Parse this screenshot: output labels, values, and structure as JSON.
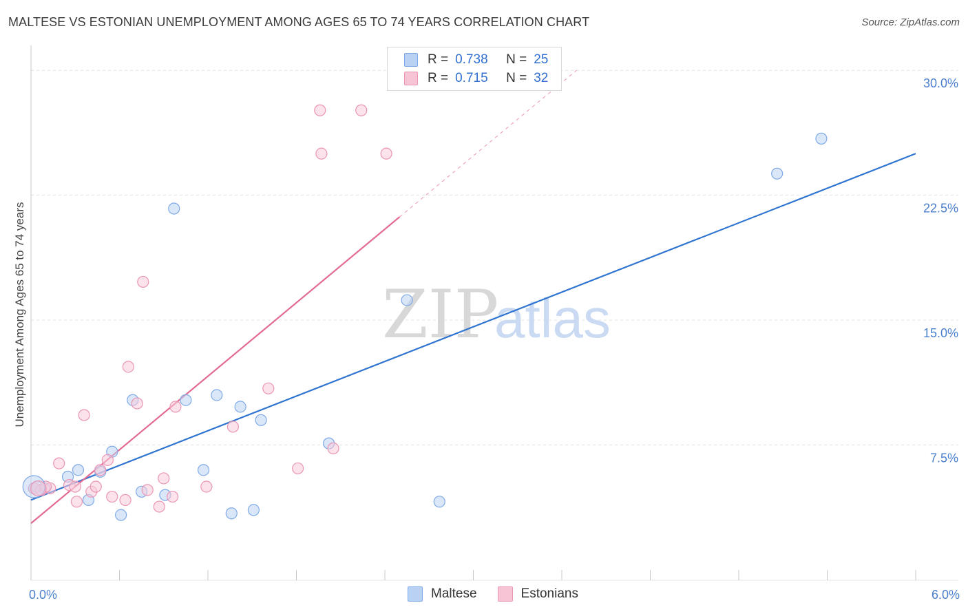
{
  "title": "MALTESE VS ESTONIAN UNEMPLOYMENT AMONG AGES 65 TO 74 YEARS CORRELATION CHART",
  "source": "Source: ZipAtlas.com",
  "watermark": {
    "zip": "ZIP",
    "atlas": "atlas"
  },
  "legend": {
    "rows": [
      {
        "r_label": "R =",
        "r_value": "0.738",
        "n_label": "N =",
        "n_value": "25",
        "color": "#7fa9e6",
        "fill": "#b9d1f2"
      },
      {
        "r_label": "R =",
        "r_value": "0.715",
        "n_label": "N =",
        "n_value": "32",
        "color": "#ea95b4",
        "fill": "#f7c4d6"
      }
    ]
  },
  "bottom_legend": {
    "maltese": "Maltese",
    "estonians": "Estonians"
  },
  "colors": {
    "maltese_stroke": "#7fa9e6",
    "maltese_fill": "#bcd3f3",
    "maltese_line": "#2f74d0",
    "estonians_stroke": "#ea95b4",
    "estonians_fill": "#f8cbdb",
    "estonians_line": "#e36a93",
    "tick_text": "#4a7fcf",
    "grid": "#e2e2e2"
  },
  "chart_data": {
    "type": "scatter",
    "xlabel": "",
    "ylabel": "Unemployment Among Ages 65 to 74 years",
    "xlim": [
      0,
      6
    ],
    "ylim": [
      0,
      31
    ],
    "x_tick_labels": [
      {
        "value": 0,
        "label": "0.0%"
      },
      {
        "value": 6,
        "label": "6.0%"
      }
    ],
    "y_tick_labels": [
      {
        "value": 7.5,
        "label": "7.5%"
      },
      {
        "value": 15,
        "label": "15.0%"
      },
      {
        "value": 22.5,
        "label": "22.5%"
      },
      {
        "value": 30,
        "label": "30.0%"
      }
    ],
    "series": [
      {
        "name": "Maltese",
        "points": [
          [
            0.02,
            4.9
          ],
          [
            0.09,
            4.9
          ],
          [
            0.25,
            5.6
          ],
          [
            0.32,
            6.0
          ],
          [
            0.39,
            4.2
          ],
          [
            0.47,
            5.9
          ],
          [
            0.55,
            7.1
          ],
          [
            0.61,
            3.3
          ],
          [
            0.69,
            10.2
          ],
          [
            0.75,
            4.7
          ],
          [
            0.91,
            4.5
          ],
          [
            0.97,
            21.7
          ],
          [
            1.05,
            10.2
          ],
          [
            1.17,
            6.0
          ],
          [
            1.26,
            10.5
          ],
          [
            1.36,
            3.4
          ],
          [
            1.42,
            9.8
          ],
          [
            1.51,
            3.6
          ],
          [
            1.56,
            9.0
          ],
          [
            2.02,
            7.6
          ],
          [
            2.55,
            16.2
          ],
          [
            2.77,
            4.1
          ],
          [
            5.06,
            23.8
          ],
          [
            5.36,
            25.9
          ],
          [
            0.04,
            5.0
          ]
        ],
        "trend": {
          "x": [
            0,
            6
          ],
          "y": [
            4.2,
            25.0
          ]
        }
      },
      {
        "name": "Estonians",
        "points": [
          [
            0.02,
            4.9
          ],
          [
            0.07,
            4.8
          ],
          [
            0.13,
            4.9
          ],
          [
            0.19,
            6.4
          ],
          [
            0.26,
            5.1
          ],
          [
            0.31,
            4.1
          ],
          [
            0.36,
            9.3
          ],
          [
            0.41,
            4.7
          ],
          [
            0.44,
            5.0
          ],
          [
            0.47,
            6.0
          ],
          [
            0.52,
            6.6
          ],
          [
            0.55,
            4.4
          ],
          [
            0.64,
            4.2
          ],
          [
            0.66,
            12.2
          ],
          [
            0.72,
            10.0
          ],
          [
            0.76,
            17.3
          ],
          [
            0.79,
            4.8
          ],
          [
            0.87,
            3.8
          ],
          [
            0.9,
            5.5
          ],
          [
            0.96,
            4.4
          ],
          [
            0.98,
            9.8
          ],
          [
            1.19,
            5.0
          ],
          [
            1.37,
            8.6
          ],
          [
            1.61,
            10.9
          ],
          [
            1.81,
            6.1
          ],
          [
            1.96,
            27.6
          ],
          [
            1.97,
            25.0
          ],
          [
            2.05,
            7.3
          ],
          [
            2.24,
            27.6
          ],
          [
            2.41,
            25.0
          ],
          [
            0.1,
            5.0
          ],
          [
            0.3,
            5.0
          ]
        ],
        "trend": {
          "x": [
            0,
            2.5
          ],
          "y": [
            2.8,
            21.2
          ]
        },
        "trend_extension": {
          "x": [
            2.5,
            3.7
          ],
          "y": [
            21.2,
            30.0
          ]
        }
      }
    ]
  }
}
